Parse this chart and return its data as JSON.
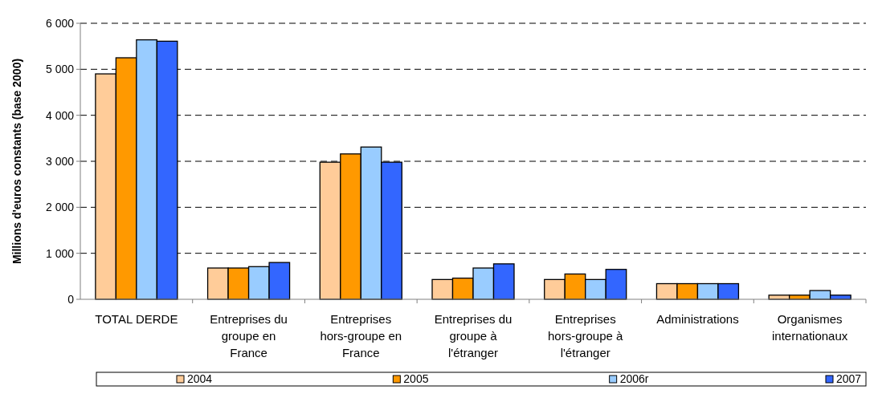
{
  "chart_data": {
    "type": "bar",
    "ylabel": "Millions d'euros constants (base 2000)",
    "categories": [
      "TOTAL DERDE",
      "Entreprises du groupe en France",
      "Entreprises hors-groupe en France",
      "Entreprises du groupe à l'étranger",
      "Entreprises hors-groupe à l'étranger",
      "Administrations",
      "Organismes internationaux"
    ],
    "series": [
      {
        "name": "2004",
        "color": "#ffcc99",
        "values": [
          4900,
          680,
          2980,
          430,
          430,
          340,
          90
        ]
      },
      {
        "name": "2005",
        "color": "#ff9900",
        "values": [
          5250,
          680,
          3160,
          460,
          550,
          340,
          90
        ]
      },
      {
        "name": "2006r",
        "color": "#99ccff",
        "values": [
          5640,
          710,
          3310,
          680,
          430,
          340,
          190
        ]
      },
      {
        "name": "2007",
        "color": "#3366ff",
        "values": [
          5610,
          800,
          2980,
          770,
          650,
          340,
          90
        ]
      }
    ],
    "ylim": [
      0,
      6000
    ],
    "yticks": [
      {
        "value": 0,
        "label": "0"
      },
      {
        "value": 1000,
        "label": "1 000"
      },
      {
        "value": 2000,
        "label": "2 000"
      },
      {
        "value": 3000,
        "label": "3 000"
      },
      {
        "value": 4000,
        "label": "4 000"
      },
      {
        "value": 5000,
        "label": "5 000"
      },
      {
        "value": 6000,
        "label": "6 000"
      }
    ],
    "grid": "y",
    "legend": "bottom"
  }
}
